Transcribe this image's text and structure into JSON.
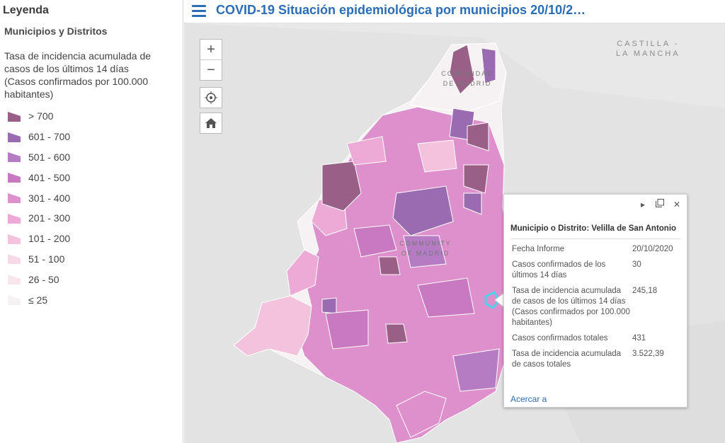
{
  "legend": {
    "title": "Leyenda",
    "layer_name": "Municipios y Distritos",
    "description": "Tasa de incidencia acumulada de casos de los últimos 14 días (Casos confirmados por 100.000 habitantes)",
    "classes": [
      {
        "label": "> 700",
        "color": "#9a5f86"
      },
      {
        "label": "601 - 700",
        "color": "#9a6bb0"
      },
      {
        "label": "501 - 600",
        "color": "#b57cc4"
      },
      {
        "label": "401 - 500",
        "color": "#c979bf"
      },
      {
        "label": "301 - 400",
        "color": "#de90cd"
      },
      {
        "label": "201 - 300",
        "color": "#eeaad6"
      },
      {
        "label": "101 - 200",
        "color": "#f3c3de"
      },
      {
        "label": "51 - 100",
        "color": "#f7d8e6"
      },
      {
        "label": "26 - 50",
        "color": "#f8e6ee"
      },
      {
        "label": "≤ 25",
        "color": "#f6f1f3"
      }
    ]
  },
  "header": {
    "title": "COVID-19 Situación epidemiológica por municipios 20/10/2…"
  },
  "map": {
    "labels": {
      "castilla": "CASTILLA -\nLA MANCHA",
      "comunidad_north": "COMUNIDAD\nDE MADRID",
      "comunidad_center": "COMMUNITY\nOF MADRID"
    },
    "controls": {
      "zoom_in": "+",
      "zoom_out": "−"
    }
  },
  "popup": {
    "title": "Municipio o Distrito: Velilla de San Antonio",
    "rows": [
      {
        "key": "Fecha Informe",
        "value": "20/10/2020"
      },
      {
        "key": "Casos confirmados de los últimos 14 días",
        "value": "30"
      },
      {
        "key": "Tasa de incidencia acumulada de casos de los últimos 14 días (Casos confirmados por 100.000 habitantes)",
        "value": "245,18"
      },
      {
        "key": "Casos confirmados totales",
        "value": "431"
      },
      {
        "key": "Tasa de incidencia acumulada de casos totales",
        "value": "3.522,39"
      }
    ],
    "zoom_link": "Acercar a"
  }
}
